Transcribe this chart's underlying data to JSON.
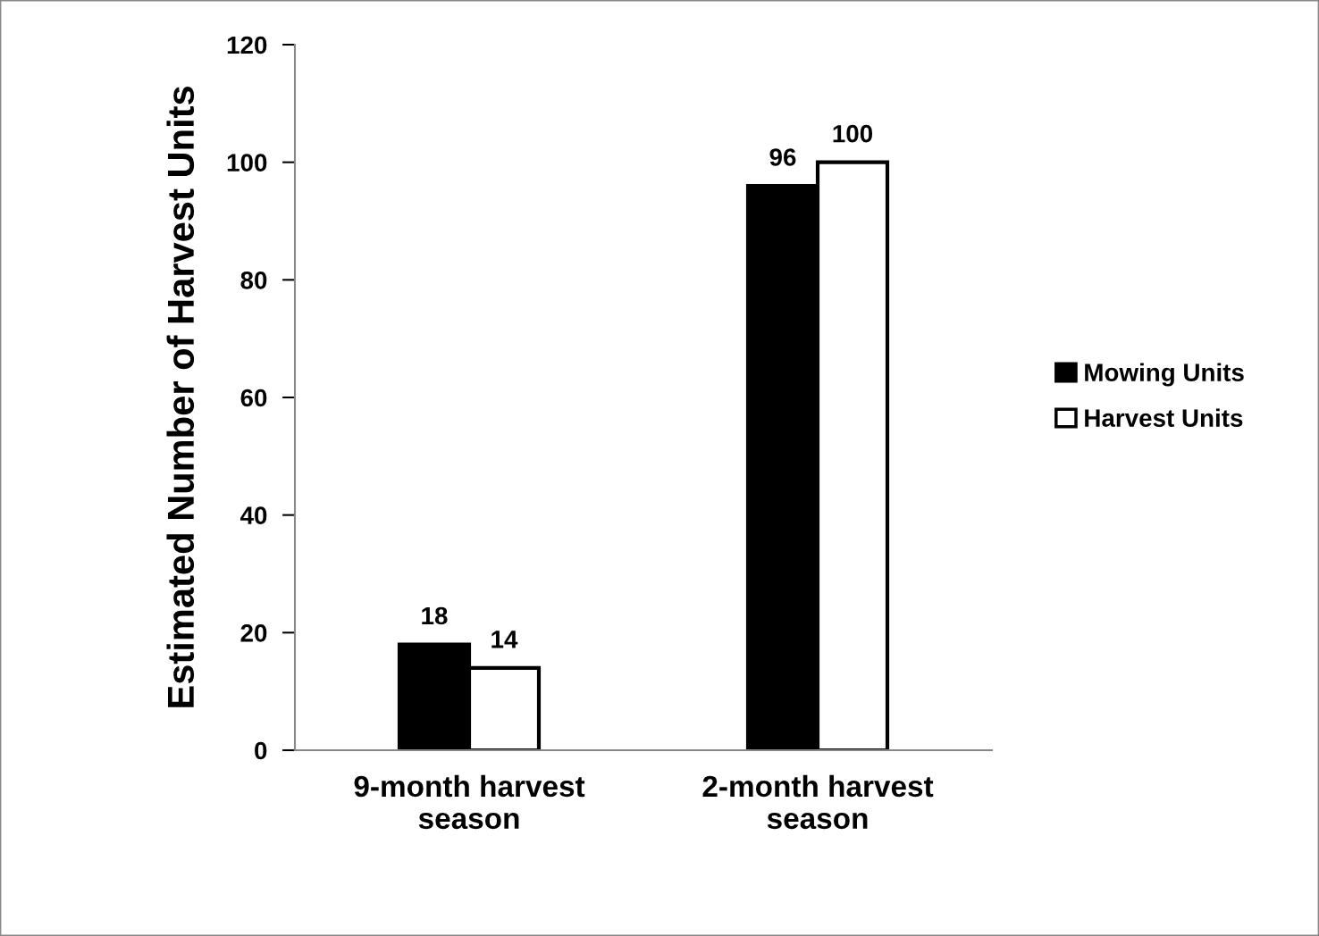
{
  "chart_data": {
    "type": "bar",
    "ylabel": "Estimated Number of Harvest Units",
    "categories": [
      "9-month harvest season",
      "2-month harvest season"
    ],
    "series": [
      {
        "name": "Mowing Units",
        "color": "#000000",
        "values": [
          18,
          96
        ]
      },
      {
        "name": "Harvest Units",
        "color": "#ffffff",
        "values": [
          14,
          100
        ]
      }
    ],
    "ylim": [
      0,
      120
    ],
    "yticks": [
      0,
      20,
      40,
      60,
      80,
      100,
      120
    ],
    "grid": false,
    "legend": "right",
    "data_labels": true
  }
}
